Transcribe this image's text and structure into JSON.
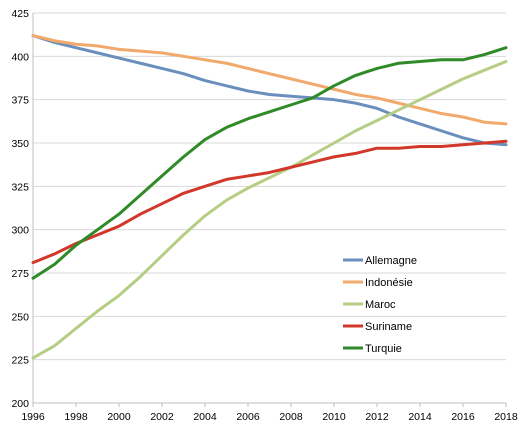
{
  "chart_data": {
    "type": "line",
    "title": "",
    "xlabel": "",
    "ylabel": "",
    "x": [
      1996,
      1997,
      1998,
      1999,
      2000,
      2001,
      2002,
      2003,
      2004,
      2005,
      2006,
      2007,
      2008,
      2009,
      2010,
      2011,
      2012,
      2013,
      2014,
      2015,
      2016,
      2017,
      2018
    ],
    "xticks": [
      "1996",
      "1998",
      "2000",
      "2002",
      "2004",
      "2006",
      "2008",
      "2010",
      "2012",
      "2014",
      "2016",
      "2018"
    ],
    "yticks": [
      "200",
      "225",
      "250",
      "275",
      "300",
      "325",
      "350",
      "375",
      "400",
      "425"
    ],
    "ylim": [
      200,
      425
    ],
    "xlim": [
      1996,
      2018
    ],
    "grid": "horizontal",
    "legend_position": "right",
    "series": [
      {
        "name": "Allemagne",
        "color": "#6a8fbd",
        "values": [
          412,
          408,
          405,
          402,
          399,
          396,
          393,
          390,
          386,
          383,
          380,
          378,
          377,
          376,
          375,
          373,
          370,
          365,
          361,
          357,
          353,
          350,
          349
        ]
      },
      {
        "name": "Indonésie",
        "color": "#f2a96c",
        "values": [
          412,
          409,
          407,
          406,
          404,
          403,
          402,
          400,
          398,
          396,
          393,
          390,
          387,
          384,
          381,
          378,
          376,
          373,
          370,
          367,
          365,
          362,
          361
        ]
      },
      {
        "name": "Maroc",
        "color": "#b5ce83",
        "values": [
          226,
          233,
          243,
          253,
          262,
          273,
          285,
          297,
          308,
          317,
          324,
          330,
          336,
          343,
          350,
          357,
          363,
          369,
          375,
          381,
          387,
          392,
          397
        ]
      },
      {
        "name": "Suriname",
        "color": "#d2382a",
        "values": [
          281,
          286,
          292,
          297,
          302,
          309,
          315,
          321,
          325,
          329,
          331,
          333,
          336,
          339,
          342,
          344,
          347,
          347,
          348,
          348,
          349,
          350,
          351
        ]
      },
      {
        "name": "Turquie",
        "color": "#2f8a27",
        "values": [
          272,
          280,
          291,
          300,
          309,
          320,
          331,
          342,
          352,
          359,
          364,
          368,
          372,
          376,
          383,
          389,
          393,
          396,
          397,
          398,
          398,
          401,
          405
        ]
      }
    ]
  }
}
